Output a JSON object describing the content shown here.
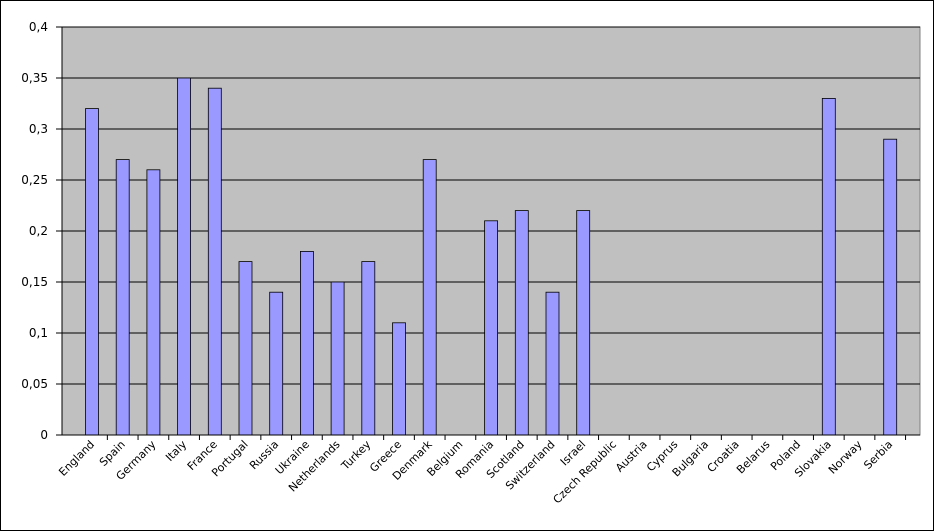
{
  "chart_data": {
    "type": "bar",
    "categories": [
      "England",
      "Spain",
      "Germany",
      "Italy",
      "France",
      "Portugal",
      "Russia",
      "Ukraine",
      "Netherlands",
      "Turkey",
      "Greece",
      "Denmark",
      "Belgium",
      "Romania",
      "Scotland",
      "Switzerland",
      "Israel",
      "Czech Republic",
      "Austria",
      "Cyprus",
      "Bulgaria",
      "Croatia",
      "Belarus",
      "Poland",
      "Slovakia",
      "Norway",
      "Serbia"
    ],
    "values": [
      0.32,
      0.27,
      0.26,
      0.35,
      0.34,
      0.17,
      0.14,
      0.18,
      0.15,
      0.17,
      0.11,
      0.27,
      0,
      0.21,
      0.22,
      0.14,
      0.22,
      0,
      0,
      0,
      0,
      0,
      0,
      0,
      0.33,
      0,
      0.29
    ],
    "color": "#9999ff",
    "ylim": [
      0,
      0.4
    ],
    "yticks": [
      0,
      {
        "value": 0.05,
        "label": "0,05"
      },
      {
        "value": 0.1,
        "label": "0,1"
      },
      {
        "value": 0.15,
        "label": "0,15"
      },
      {
        "value": 0.2,
        "label": "0,2"
      },
      {
        "value": 0.25,
        "label": "0,25"
      },
      {
        "value": 0.3,
        "label": "0,3"
      },
      {
        "value": 0.35,
        "label": "0,35"
      },
      {
        "value": 0.4,
        "label": "0,4"
      }
    ],
    "grid": true
  }
}
